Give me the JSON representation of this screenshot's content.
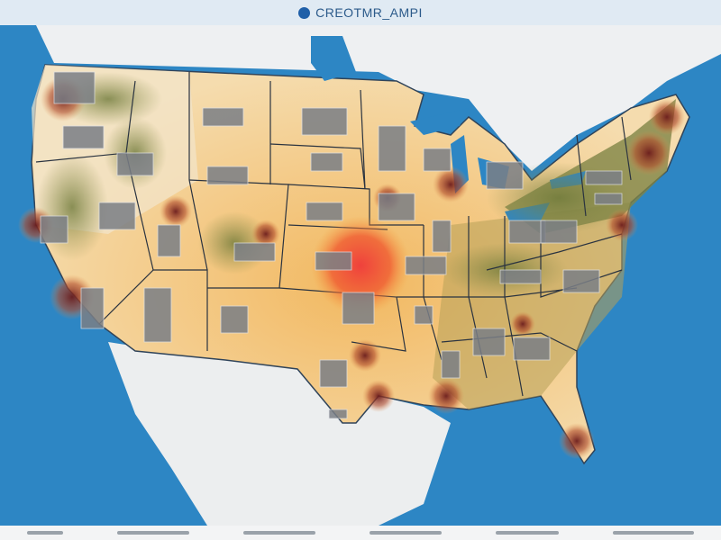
{
  "title": "CREOTMR_AMPI",
  "colors": {
    "ocean": "#2d86c4",
    "land_light": "#f3e3c2",
    "land_warm": "#efc275",
    "land_green": "#8a8d4a",
    "hotspot": "#ef5a3a",
    "label_box": "#7b7f86"
  },
  "icons": {
    "logo": "circle-logo-icon"
  }
}
